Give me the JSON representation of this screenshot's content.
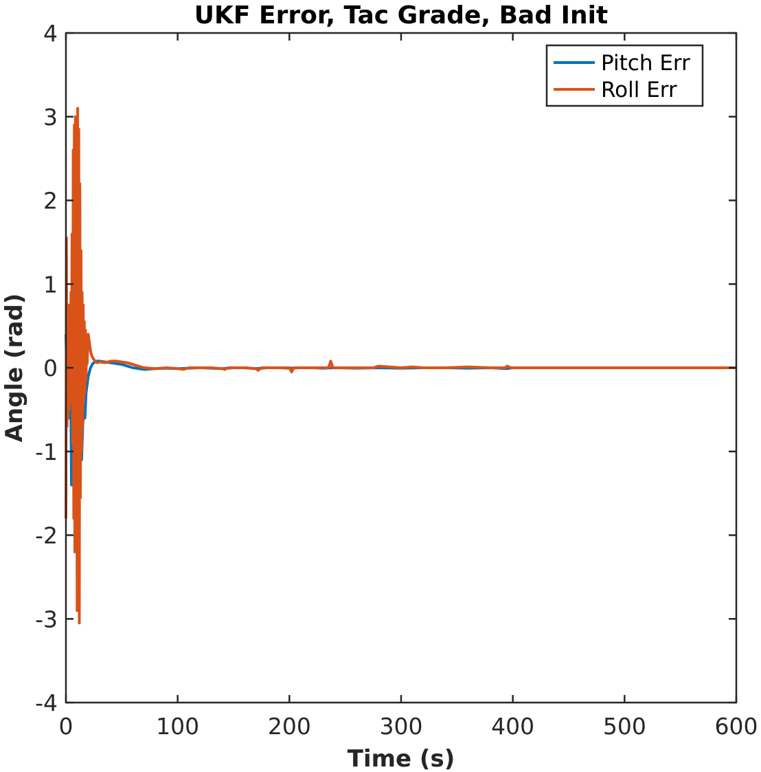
{
  "chart_data": {
    "type": "line",
    "title": "UKF Error, Tac Grade, Bad Init",
    "xlabel": "Time (s)",
    "ylabel": "Angle (rad)",
    "xlim": [
      0,
      600
    ],
    "ylim": [
      -4,
      4
    ],
    "xticks": [
      "0",
      "100",
      "200",
      "300",
      "400",
      "500",
      "600"
    ],
    "yticks": [
      "4",
      "3",
      "2",
      "1",
      "0",
      "-1",
      "-2",
      "-3",
      "-4"
    ],
    "grid": false,
    "legend": {
      "placement": "top-right",
      "entries": [
        "Pitch Err",
        "Roll Err"
      ]
    },
    "series": [
      {
        "name": "Pitch Err",
        "color": "#0072BD",
        "x": [
          0,
          1,
          2,
          3,
          4,
          5,
          6,
          7,
          8,
          9,
          10,
          11,
          12,
          13,
          14,
          15,
          16,
          17,
          18,
          19,
          20,
          22,
          24,
          26,
          28,
          30,
          35,
          40,
          45,
          50,
          55,
          60,
          65,
          70,
          80,
          90,
          100,
          110,
          120,
          130,
          140,
          150,
          160,
          170,
          180,
          190,
          200,
          210,
          220,
          230,
          240,
          260,
          280,
          300,
          320,
          340,
          360,
          380,
          395,
          400,
          420,
          450,
          500,
          550,
          600
        ],
        "y": [
          0.4,
          -0.3,
          0.5,
          -0.6,
          0.3,
          -1.4,
          -0.8,
          -0.4,
          -1.1,
          -0.6,
          -0.9,
          -0.5,
          -1.1,
          -0.8,
          -1.1,
          -0.7,
          -0.5,
          -0.6,
          -0.3,
          -0.2,
          -0.1,
          0.0,
          0.05,
          0.07,
          0.08,
          0.08,
          0.07,
          0.06,
          0.05,
          0.04,
          0.02,
          0.0,
          -0.01,
          -0.02,
          -0.01,
          -0.005,
          -0.01,
          -0.005,
          0.0,
          -0.005,
          -0.01,
          0.0,
          0.0,
          -0.01,
          0.0,
          0.0,
          -0.005,
          0.0,
          0.0,
          -0.005,
          0.0,
          -0.005,
          0.0,
          -0.005,
          0.0,
          0.0,
          -0.005,
          0.0,
          -0.01,
          0.0,
          0.0,
          0.0,
          0.0,
          0.0,
          0.0
        ]
      },
      {
        "name": "Roll Err",
        "color": "#D95319",
        "x": [
          0,
          0.5,
          1,
          1.5,
          2,
          2.5,
          3,
          3.5,
          4,
          4.5,
          5,
          5.5,
          6,
          6.5,
          7,
          7.5,
          8,
          8.5,
          9,
          9.5,
          10,
          10.5,
          11,
          11.5,
          12,
          12.5,
          13,
          13.5,
          14,
          14.5,
          15,
          15.5,
          16,
          16.5,
          17,
          17.5,
          18,
          18.5,
          19,
          19.5,
          20,
          21,
          22,
          23,
          24,
          26,
          28,
          30,
          35,
          40,
          45,
          50,
          55,
          60,
          65,
          70,
          80,
          90,
          100,
          105,
          110,
          120,
          130,
          140,
          142,
          145,
          160,
          170,
          172,
          175,
          190,
          200,
          202,
          204,
          208,
          220,
          235,
          237,
          239,
          241,
          260,
          275,
          280,
          300,
          310,
          320,
          340,
          360,
          380,
          393,
          395,
          398,
          402,
          420,
          450,
          500,
          550,
          600
        ],
        "y": [
          -1.8,
          1.55,
          -0.7,
          0.3,
          -0.6,
          0.75,
          -0.5,
          0.6,
          -0.4,
          0.9,
          -0.3,
          1.6,
          -0.9,
          2.6,
          -1.8,
          2.9,
          -2.2,
          3.0,
          -1.5,
          2.5,
          -2.9,
          3.1,
          -2.4,
          2.85,
          -3.05,
          2.2,
          -1.55,
          1.4,
          -1.0,
          0.9,
          -0.7,
          0.75,
          -0.4,
          0.55,
          -0.3,
          0.45,
          -0.15,
          0.35,
          0.05,
          0.25,
          0.4,
          0.3,
          0.2,
          0.15,
          0.12,
          0.08,
          0.06,
          0.07,
          0.06,
          0.08,
          0.08,
          0.07,
          0.06,
          0.04,
          0.02,
          0.0,
          -0.01,
          0.0,
          -0.01,
          -0.02,
          0.0,
          0.0,
          0.0,
          -0.01,
          -0.02,
          0.0,
          0.0,
          -0.01,
          -0.03,
          0.0,
          0.0,
          0.0,
          -0.05,
          0.0,
          0.0,
          0.0,
          0.0,
          0.08,
          0.0,
          0.0,
          0.0,
          0.0,
          0.02,
          0.0,
          0.01,
          0.0,
          0.0,
          0.01,
          0.0,
          0.0,
          0.02,
          0.0,
          0.0,
          0.0,
          0.0,
          0.0,
          0.0,
          0.0
        ]
      }
    ]
  }
}
